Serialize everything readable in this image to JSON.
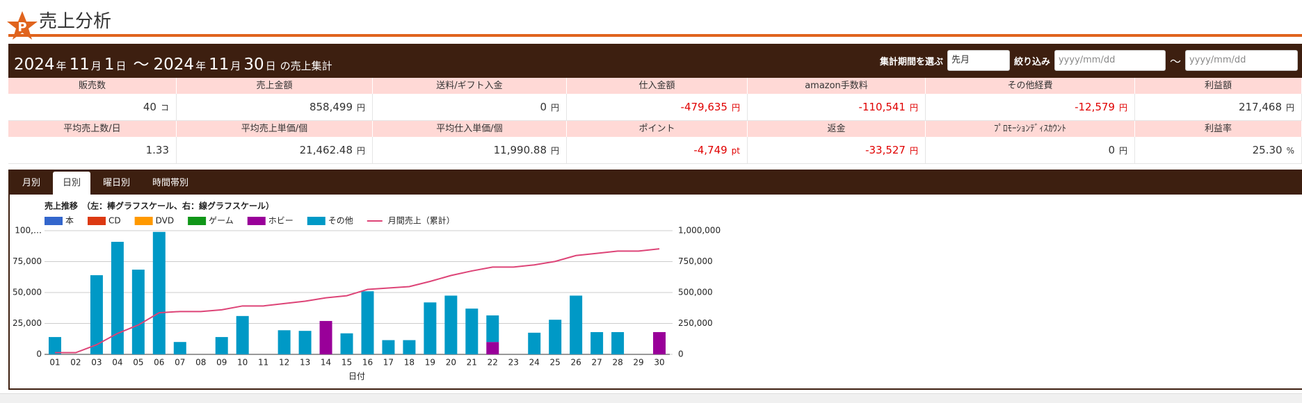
{
  "header": {
    "title": "売上分析"
  },
  "summary": {
    "period": {
      "start": [
        "2024",
        "年",
        "11",
        "月",
        "1",
        "日"
      ],
      "sep": "～",
      "end": [
        "2024",
        "年",
        "11",
        "月",
        "30",
        "日"
      ],
      "suffix": "の売上集計"
    },
    "controls": {
      "period_label": "集計期間を選ぶ",
      "period_select": "先月",
      "filter_label": "絞り込み",
      "from_placeholder": "yyyy/mm/dd",
      "sep": "～",
      "to_placeholder": "yyyy/mm/dd"
    },
    "table": {
      "rows": [
        {
          "headers": [
            "販売数",
            "売上金額",
            "送料/ギフト入金",
            "仕入金額",
            "amazon手数料",
            "その他経費",
            "利益額"
          ],
          "cells": [
            {
              "value": "40",
              "unit": "コ"
            },
            {
              "value": "858,499",
              "unit": "円"
            },
            {
              "value": "0",
              "unit": "円"
            },
            {
              "value": "-479,635",
              "unit": "円"
            },
            {
              "value": "-110,541",
              "unit": "円"
            },
            {
              "value": "-12,579",
              "unit": "円"
            },
            {
              "value": "217,468",
              "unit": "円"
            }
          ]
        },
        {
          "headers": [
            "平均売上数/日",
            "平均売上単価/個",
            "平均仕入単価/個",
            "ポイント",
            "返金",
            "ﾌﾟﾛﾓｰｼｮﾝﾃﾞｨｽｶｳﾝﾄ",
            "利益率"
          ],
          "cells": [
            {
              "value": "1.33"
            },
            {
              "value": "21,462.48",
              "unit": "円"
            },
            {
              "value": "11,990.88",
              "unit": "円"
            },
            {
              "value": "-4,749",
              "unit": "pt"
            },
            {
              "value": "-33,527",
              "unit": "円"
            },
            {
              "value": "0",
              "unit": "円"
            },
            {
              "value": "25.30",
              "unit": "%"
            }
          ]
        }
      ]
    }
  },
  "tabs": {
    "items": [
      "月別",
      "日別",
      "曜日別",
      "時間帯別"
    ],
    "active": 1
  },
  "chart_data": {
    "type": "bar",
    "stacked": true,
    "title": "売上推移　（左：棒グラフスケール、右：線グラフスケール）",
    "xlabel": "日付",
    "categories": [
      "01",
      "02",
      "03",
      "04",
      "05",
      "06",
      "07",
      "08",
      "09",
      "10",
      "11",
      "12",
      "13",
      "14",
      "15",
      "16",
      "17",
      "18",
      "19",
      "20",
      "21",
      "22",
      "23",
      "24",
      "25",
      "26",
      "27",
      "28",
      "29",
      "30"
    ],
    "series": [
      {
        "name": "本",
        "color": "#3366cc",
        "values": [
          0,
          0,
          0,
          0,
          0,
          0,
          0,
          0,
          0,
          0,
          0,
          0,
          0,
          0,
          0,
          0,
          0,
          0,
          0,
          0,
          0,
          0,
          0,
          0,
          0,
          0,
          0,
          0,
          0,
          0
        ]
      },
      {
        "name": "CD",
        "color": "#dc3912",
        "values": [
          0,
          0,
          0,
          0,
          0,
          0,
          0,
          0,
          0,
          0,
          0,
          0,
          0,
          0,
          0,
          0,
          0,
          0,
          0,
          0,
          0,
          0,
          0,
          0,
          0,
          0,
          0,
          0,
          0,
          0
        ]
      },
      {
        "name": "DVD",
        "color": "#ff9900",
        "values": [
          0,
          0,
          0,
          0,
          0,
          0,
          0,
          0,
          0,
          0,
          0,
          0,
          0,
          0,
          0,
          0,
          0,
          0,
          0,
          0,
          0,
          0,
          0,
          0,
          0,
          0,
          0,
          0,
          0,
          0
        ]
      },
      {
        "name": "ゲーム",
        "color": "#109618",
        "values": [
          0,
          0,
          0,
          0,
          0,
          0,
          0,
          0,
          0,
          0,
          0,
          0,
          0,
          0,
          0,
          0,
          0,
          0,
          0,
          0,
          0,
          0,
          0,
          0,
          0,
          0,
          0,
          0,
          0,
          0
        ]
      },
      {
        "name": "ホビー",
        "color": "#990099",
        "values": [
          0,
          0,
          0,
          0,
          0,
          0,
          0,
          0,
          0,
          0,
          0,
          0,
          0,
          27000,
          0,
          0,
          0,
          0,
          0,
          0,
          0,
          10000,
          0,
          0,
          0,
          0,
          0,
          0,
          0,
          18000
        ]
      },
      {
        "name": "その他",
        "color": "#0099c6",
        "values": [
          14000,
          0,
          64000,
          91000,
          68500,
          99000,
          10000,
          0,
          14000,
          31000,
          0,
          19500,
          19000,
          0,
          17000,
          51000,
          11500,
          11500,
          42000,
          47500,
          37000,
          21500,
          0,
          17500,
          28000,
          47500,
          18000,
          18000,
          0,
          0
        ]
      },
      {
        "name": "月間売上（累計）",
        "color": "#dd4477",
        "type": "line",
        "axis": "y2",
        "values": [
          14000,
          14000,
          78000,
          169000,
          237500,
          336500,
          346500,
          346500,
          360500,
          391500,
          391500,
          411000,
          430000,
          457000,
          474000,
          525000,
          536500,
          548000,
          590000,
          637500,
          674500,
          706000,
          706000,
          723500,
          751500,
          799000,
          817000,
          835000,
          835000,
          853000
        ]
      }
    ],
    "ylim": [
      0,
      100000
    ],
    "yticks": [
      0,
      {
        "value": 25000,
        "label": "25,000"
      },
      {
        "value": 50000,
        "label": "50,000"
      },
      {
        "value": 75000,
        "label": "75,000"
      },
      {
        "value": 100000,
        "label": "100,…"
      }
    ],
    "y2lim": [
      0,
      1000000
    ],
    "y2ticks": [
      0,
      {
        "value": 250000,
        "label": "250,000"
      },
      {
        "value": 500000,
        "label": "500,000"
      },
      {
        "value": 750000,
        "label": "750,000"
      },
      {
        "value": 1000000,
        "label": "1,000,000"
      }
    ],
    "grid": true,
    "legend": "top"
  }
}
